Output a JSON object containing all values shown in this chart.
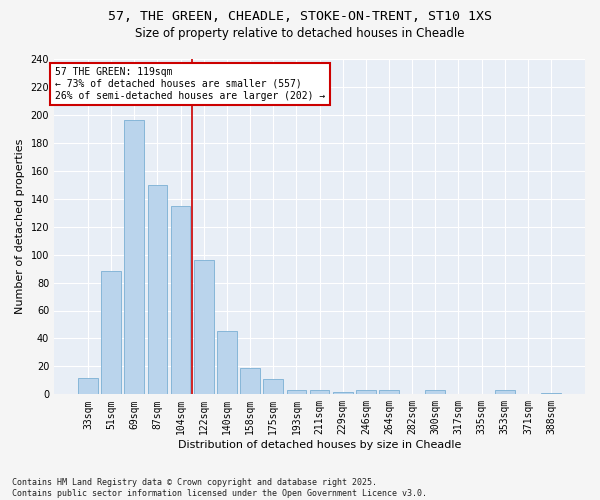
{
  "title1": "57, THE GREEN, CHEADLE, STOKE-ON-TRENT, ST10 1XS",
  "title2": "Size of property relative to detached houses in Cheadle",
  "xlabel": "Distribution of detached houses by size in Cheadle",
  "ylabel": "Number of detached properties",
  "categories": [
    "33sqm",
    "51sqm",
    "69sqm",
    "87sqm",
    "104sqm",
    "122sqm",
    "140sqm",
    "158sqm",
    "175sqm",
    "193sqm",
    "211sqm",
    "229sqm",
    "246sqm",
    "264sqm",
    "282sqm",
    "300sqm",
    "317sqm",
    "335sqm",
    "353sqm",
    "371sqm",
    "388sqm"
  ],
  "values": [
    12,
    88,
    196,
    150,
    135,
    96,
    45,
    19,
    11,
    3,
    3,
    2,
    3,
    3,
    0,
    3,
    0,
    0,
    3,
    0,
    1
  ],
  "bar_color": "#bad4ec",
  "bar_edge_color": "#7bafd4",
  "vline_x_index": 5,
  "vline_color": "#cc0000",
  "annotation_text": "57 THE GREEN: 119sqm\n← 73% of detached houses are smaller (557)\n26% of semi-detached houses are larger (202) →",
  "annotation_box_facecolor": "#ffffff",
  "annotation_box_edgecolor": "#cc0000",
  "ylim": [
    0,
    240
  ],
  "yticks": [
    0,
    20,
    40,
    60,
    80,
    100,
    120,
    140,
    160,
    180,
    200,
    220,
    240
  ],
  "bg_color": "#e8eef6",
  "grid_color": "#ffffff",
  "fig_bg_color": "#f5f5f5",
  "footer": "Contains HM Land Registry data © Crown copyright and database right 2025.\nContains public sector information licensed under the Open Government Licence v3.0.",
  "title1_fontsize": 9.5,
  "title2_fontsize": 8.5,
  "xlabel_fontsize": 8,
  "ylabel_fontsize": 8,
  "tick_fontsize": 7,
  "annotation_fontsize": 7,
  "footer_fontsize": 6
}
